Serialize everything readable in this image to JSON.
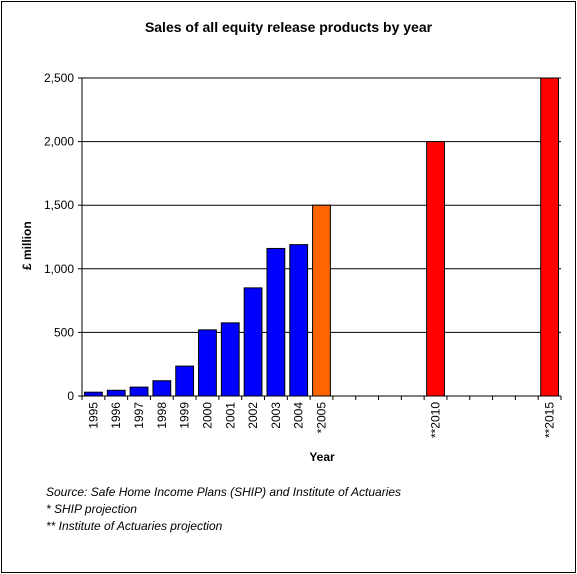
{
  "chart_data": {
    "type": "bar",
    "title": "Sales of all equity release products by year",
    "xlabel": "Year",
    "ylabel": "£ million",
    "ylim": [
      0,
      2500
    ],
    "yticks": [
      "0",
      "500",
      "1,000",
      "1,500",
      "2,000",
      "2,500"
    ],
    "ytick_values": [
      0,
      500,
      1000,
      1500,
      2000,
      2500
    ],
    "grid": true,
    "categories": [
      "1995",
      "1996",
      "1997",
      "1998",
      "1999",
      "2000",
      "2001",
      "2002",
      "2003",
      "2004",
      "*2005",
      "",
      "",
      "",
      "",
      "**2010",
      "",
      "",
      "",
      "",
      "**2015"
    ],
    "values": [
      30,
      45,
      70,
      120,
      235,
      520,
      575,
      850,
      1160,
      1190,
      1500,
      null,
      null,
      null,
      null,
      2000,
      null,
      null,
      null,
      null,
      2500
    ],
    "colors": [
      "#0000ff",
      "#0000ff",
      "#0000ff",
      "#0000ff",
      "#0000ff",
      "#0000ff",
      "#0000ff",
      "#0000ff",
      "#0000ff",
      "#0000ff",
      "#ff6600",
      null,
      null,
      null,
      null,
      "#ff0000",
      null,
      null,
      null,
      null,
      "#ff0000"
    ]
  },
  "notes": {
    "source": "Source: Safe Home Income Plans (SHIP) and Institute of Actuaries",
    "ship": "* SHIP projection",
    "ioa": "** Institute of Actuaries projection"
  }
}
